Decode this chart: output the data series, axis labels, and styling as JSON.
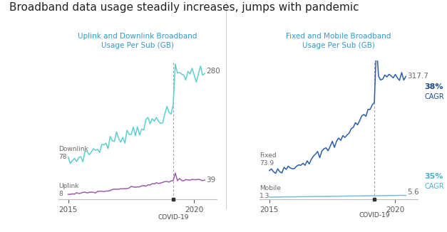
{
  "title": "Broadband data usage steadily increases, jumps with pandemic",
  "title_fontsize": 11,
  "background_color": "#ffffff",
  "left_title": "Uplink and Downlink Broadband\nUsage Per Sub (GB)",
  "right_title": "Fixed and Mobile Broadband\nUsage Per Sub (GB)",
  "covid_label": "COVID-19",
  "covid_x": 2019.17,
  "left_annotations": {
    "downlink_label": "Downlink",
    "downlink_value": "78",
    "uplink_label": "Uplink",
    "uplink_value": "8",
    "end_downlink": "280",
    "end_uplink": "39"
  },
  "right_annotations": {
    "fixed_label": "Fixed",
    "fixed_value": "73.9",
    "mobile_label": "Mobile",
    "mobile_value": "1.3",
    "end_fixed": "317.7",
    "end_mobile": "5.6"
  },
  "colors": {
    "downlink": "#5ecfcf",
    "uplink": "#9b5ea8",
    "fixed": "#2a5fa8",
    "mobile": "#7bbdd4",
    "covid_line": "#999999",
    "title_text": "#222222",
    "subtitle_text": "#3399cc",
    "annotation_text": "#666666",
    "cagr_fixed_color": "#1a4a8a",
    "cagr_mobile_color": "#4ab0cc"
  },
  "xlim": [
    2014.6,
    2020.9
  ],
  "xticks": [
    2015,
    2020
  ],
  "ylim_left": [
    -5,
    310
  ],
  "ylim_right": [
    -5,
    360
  ]
}
